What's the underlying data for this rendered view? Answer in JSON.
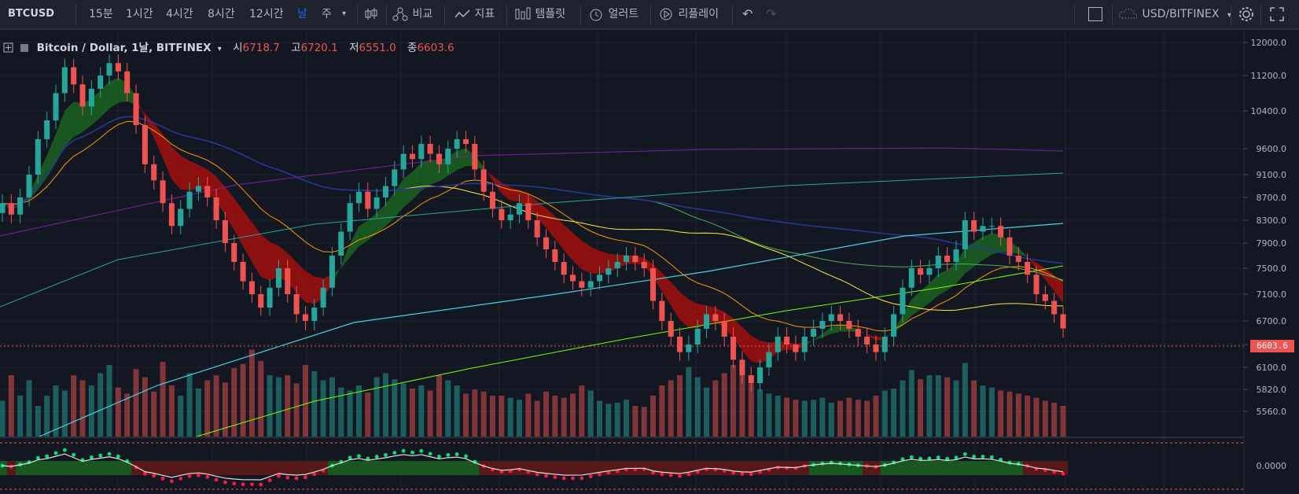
{
  "toolbar": {
    "symbol": "BTCUSD",
    "intervals": [
      "15분",
      "1시간",
      "4시간",
      "8시간",
      "12시간",
      "날",
      "주"
    ],
    "active_interval": "날",
    "compare_label": "비교",
    "indicators_label": "지표",
    "templates_label": "템플릿",
    "alert_label": "얼러트",
    "replay_label": "리플레이",
    "exchange_label": "USD/BITFINEX"
  },
  "legend": {
    "title": "Bitcoin / Dollar, 1날, BITFINEX",
    "open_label": "시",
    "open": "6718.7",
    "high_label": "고",
    "high": "6720.1",
    "low_label": "저",
    "low": "6551.0",
    "close_label": "종",
    "close": "6603.6"
  },
  "price_axis": {
    "ticks": [
      "12000.0",
      "11200.0",
      "10400.0",
      "9600.0",
      "9100.0",
      "8700.0",
      "8300.0",
      "7900.0",
      "7500.0",
      "7100.0",
      "6700.0",
      "6400.0",
      "6100.0",
      "5820.0",
      "5560.0"
    ],
    "current_price": "6603.6",
    "oscillator_tick": "0.0000"
  },
  "colors": {
    "background": "#131722",
    "toolbar": "#1e222d",
    "up": "#26a69a",
    "down": "#ef5350",
    "accent": "#2962ff"
  },
  "chart_data": {
    "type": "candlestick",
    "symbol": "BTCUSD",
    "exchange": "BITFINEX",
    "interval": "1날",
    "ylim": [
      5560,
      12000
    ],
    "ohlc_last": {
      "open": 6718.7,
      "high": 6720.1,
      "low": 6551.0,
      "close": 6603.6
    },
    "closes": [
      8600,
      8400,
      8700,
      9100,
      9800,
      10200,
      10800,
      11400,
      11000,
      10500,
      10900,
      11200,
      11500,
      11300,
      10800,
      10100,
      9300,
      9000,
      8600,
      8200,
      8500,
      8800,
      8900,
      8700,
      8300,
      7900,
      7600,
      7300,
      7100,
      6900,
      7200,
      7500,
      7100,
      6800,
      6700,
      6900,
      7200,
      7700,
      8100,
      8600,
      8800,
      8500,
      8700,
      8900,
      9200,
      9500,
      9400,
      9700,
      9500,
      9300,
      9600,
      9800,
      9700,
      9200,
      8800,
      8500,
      8300,
      8400,
      8600,
      8300,
      8000,
      7800,
      7600,
      7400,
      7300,
      7200,
      7300,
      7400,
      7500,
      7600,
      7700,
      7600,
      7500,
      7000,
      6700,
      6500,
      6300,
      6400,
      6600,
      6800,
      6700,
      6500,
      6200,
      6000,
      5900,
      6100,
      6300,
      6500,
      6400,
      6300,
      6500,
      6600,
      6700,
      6800,
      6700,
      6600,
      6500,
      6400,
      6300,
      6500,
      6800,
      7200,
      7500,
      7400,
      7500,
      7700,
      7600,
      7800,
      8300,
      8100,
      8200,
      8200,
      8000,
      7700,
      7600,
      7400,
      7100,
      7000,
      6800,
      6603.6
    ],
    "volume_relative": [
      0.35,
      0.6,
      0.4,
      0.55,
      0.3,
      0.4,
      0.5,
      0.45,
      0.6,
      0.55,
      0.5,
      0.62,
      0.7,
      0.48,
      0.42,
      0.66,
      0.58,
      0.44,
      0.73,
      0.5,
      0.4,
      0.62,
      0.47,
      0.55,
      0.6,
      0.53,
      0.67,
      0.71,
      0.85,
      0.74,
      0.6,
      0.58,
      0.6,
      0.52,
      0.7,
      0.64,
      0.55,
      0.58,
      0.48,
      0.45,
      0.5,
      0.43,
      0.58,
      0.62,
      0.56,
      0.52,
      0.47,
      0.5,
      0.45,
      0.6,
      0.55,
      0.5,
      0.42,
      0.46,
      0.44,
      0.4,
      0.4,
      0.38,
      0.36,
      0.42,
      0.35,
      0.44,
      0.4,
      0.38,
      0.42,
      0.5,
      0.45,
      0.35,
      0.32,
      0.33,
      0.36,
      0.3,
      0.29,
      0.4,
      0.5,
      0.55,
      0.6,
      0.68,
      0.58,
      0.48,
      0.55,
      0.62,
      0.7,
      0.6,
      0.52,
      0.46,
      0.42,
      0.4,
      0.38,
      0.36,
      0.35,
      0.36,
      0.38,
      0.33,
      0.35,
      0.38,
      0.36,
      0.35,
      0.4,
      0.45,
      0.47,
      0.55,
      0.65,
      0.56,
      0.6,
      0.6,
      0.58,
      0.55,
      0.72,
      0.55,
      0.5,
      0.48,
      0.45,
      0.44,
      0.42,
      0.4,
      0.38,
      0.35,
      0.33,
      0.3
    ]
  }
}
